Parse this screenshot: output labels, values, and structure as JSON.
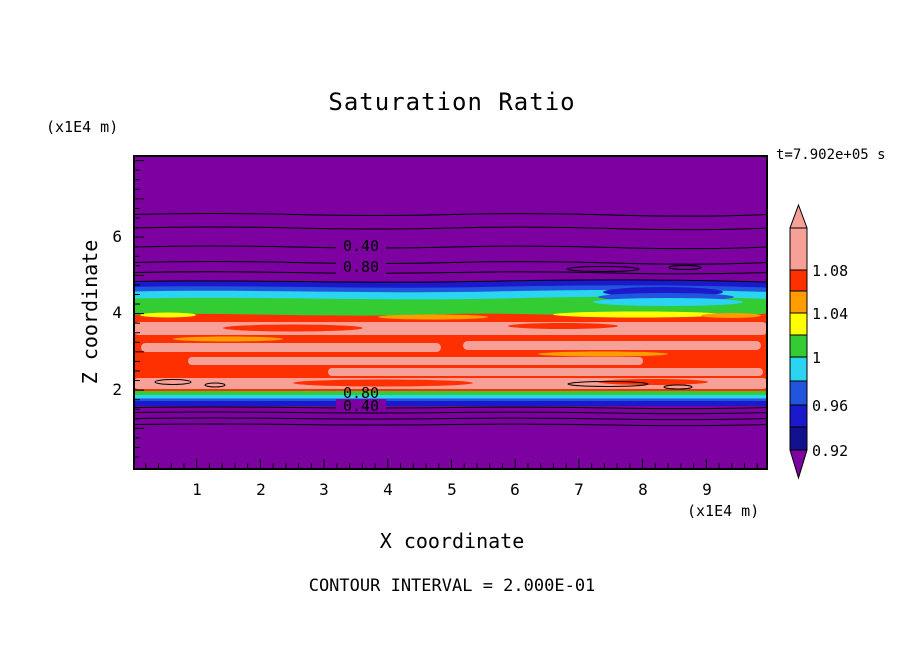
{
  "title": "Saturation Ratio",
  "time_label": "t=7.902e+05 s",
  "footer_label": "CONTOUR INTERVAL = 2.000E-01",
  "axes": {
    "x_label": "X coordinate",
    "x_unit": "(x1E4 m)",
    "y_label": "Z coordinate",
    "y_unit": "(x1E4 m)",
    "x_ticks": [
      "1",
      "2",
      "3",
      "4",
      "5",
      "6",
      "7",
      "8",
      "9"
    ],
    "y_ticks": [
      "6",
      "4",
      "2"
    ]
  },
  "contour_labels": {
    "upper_a": "0.40",
    "upper_b": "0.80",
    "lower_a": "0.80",
    "lower_b": "0.40"
  },
  "colorbar": {
    "labels": [
      "1.08",
      "1.04",
      "1",
      "0.96",
      "0.92"
    ]
  },
  "chart_data": {
    "type": "heatmap",
    "title": "Saturation Ratio",
    "xlabel": "X coordinate (x1E4 m)",
    "ylabel": "Z coordinate (x1E4 m)",
    "x_range": [
      0,
      10
    ],
    "z_range": [
      0,
      8.2
    ],
    "time": "t=7.902e+05 s",
    "contour_interval": 0.2,
    "colorbar_levels": [
      1.08,
      1.04,
      1.0,
      0.96,
      0.92
    ],
    "colorbar_colors": [
      "#F7A098",
      "#FF3000",
      "#FF9D00",
      "#FFFF00",
      "#33CC33",
      "#2BD4F0",
      "#2255DD",
      "#1A1ACC",
      "#12128F",
      "#7D00A0"
    ],
    "bands": [
      {
        "z_from": 4.75,
        "z_to": 8.2,
        "color": "#7D00A0",
        "label": "low saturation (<0.92); black contour lines incl. 0.40 and 0.80"
      },
      {
        "z_from": 4.55,
        "z_to": 4.75,
        "color": "#1A1ACC",
        "label": "0.92-0.96"
      },
      {
        "z_from": 4.4,
        "z_to": 4.55,
        "color": "#2BD4F0",
        "label": "0.96-1.00"
      },
      {
        "z_from": 4.0,
        "z_to": 4.4,
        "color": "#33CC33",
        "label": "1.00-1.04 (wavy, with blue dip near x=8.5)"
      },
      {
        "z_from": 2.0,
        "z_to": 4.0,
        "color": "#FF3000",
        "label": "1.04-1.08 red zone with salmon (>1.08) streaks and yellow/orange slivers"
      },
      {
        "z_from": 1.85,
        "z_to": 2.0,
        "color": "#33CC33 / #2BD4F0 / #1A1ACC",
        "label": "transition back through 1.00-0.92"
      },
      {
        "z_from": 0,
        "z_to": 1.85,
        "color": "#7D00A0",
        "label": "low saturation (<0.92); black contour lines incl. 0.80 and 0.40"
      }
    ],
    "contour_lines_z_upper": [
      6.6,
      6.25,
      5.75,
      5.35,
      5.1
    ],
    "contour_lines_z_lower": [
      1.8,
      1.65,
      1.5,
      1.3
    ]
  }
}
